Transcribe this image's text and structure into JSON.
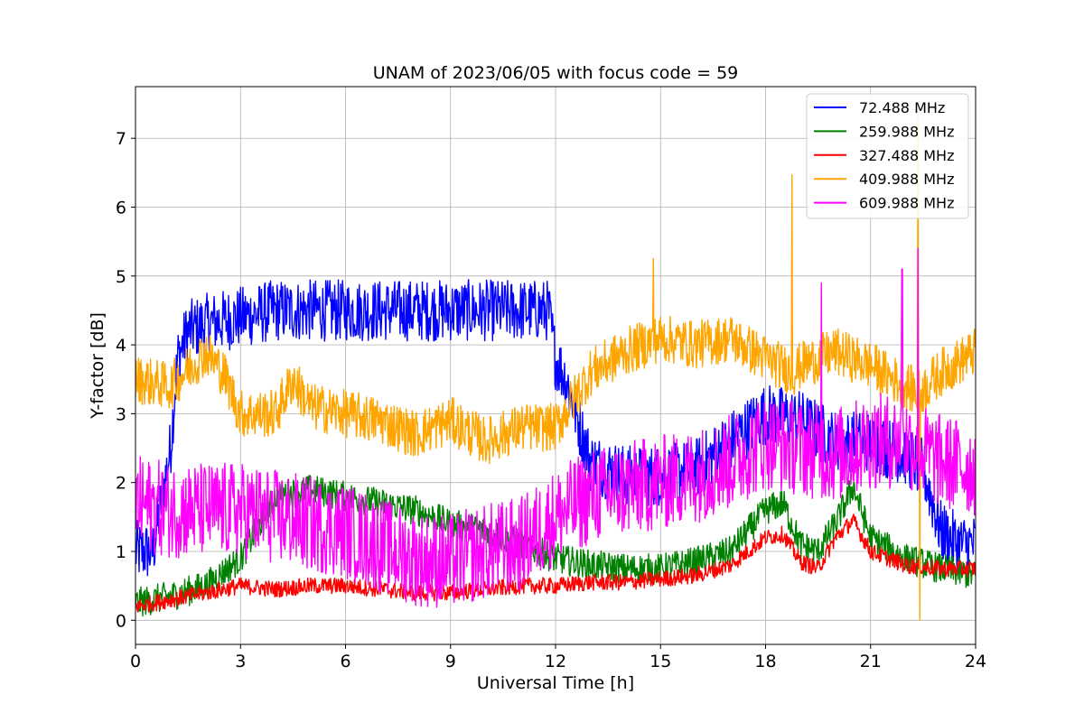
{
  "chart_data": {
    "type": "line",
    "title": "UNAM of 2023/06/05 with focus code = 59",
    "xlabel": "Universal Time [h]",
    "ylabel": "Y-factor [dB]",
    "xlim": [
      0,
      24
    ],
    "ylim": [
      -0.35,
      7.75
    ],
    "xticks": [
      0,
      3,
      6,
      9,
      12,
      15,
      18,
      21,
      24
    ],
    "xtick_labels": [
      "0",
      "3",
      "6",
      "9",
      "12",
      "15",
      "18",
      "21",
      "24"
    ],
    "yticks": [
      0,
      1,
      2,
      3,
      4,
      5,
      6,
      7
    ],
    "ytick_labels": [
      "0",
      "1",
      "2",
      "3",
      "4",
      "5",
      "6",
      "7"
    ],
    "grid": true,
    "legend_position": "top-right",
    "series": [
      {
        "name": " 72.488 MHz",
        "color": "#0000ff",
        "x": [
          0,
          0.5,
          1,
          1.2,
          1.5,
          2,
          3,
          4,
          5,
          6,
          7,
          8,
          9,
          10,
          11,
          11.8,
          12,
          12.3,
          12.7,
          13,
          14,
          15,
          16,
          17,
          18,
          19,
          20,
          21,
          22,
          22.5,
          23,
          23.5,
          24
        ],
        "y": [
          1.0,
          1.0,
          2.5,
          3.8,
          4.2,
          4.3,
          4.4,
          4.5,
          4.5,
          4.5,
          4.5,
          4.5,
          4.5,
          4.5,
          4.5,
          4.5,
          3.8,
          3.5,
          2.8,
          2.3,
          2.1,
          2.1,
          2.2,
          2.6,
          3.0,
          2.9,
          2.6,
          2.6,
          2.4,
          2.2,
          1.3,
          1.1,
          1.1
        ],
        "noise": 0.45
      },
      {
        "name": "259.988 MHz",
        "color": "#008000",
        "x": [
          0,
          1,
          2,
          3,
          4,
          5,
          6,
          7,
          8,
          9,
          10,
          11,
          12,
          13,
          14,
          15,
          16,
          17,
          18,
          18.5,
          19,
          19.5,
          20,
          20.5,
          21,
          22,
          23,
          24
        ],
        "y": [
          0.25,
          0.35,
          0.5,
          0.9,
          1.8,
          1.9,
          1.8,
          1.7,
          1.6,
          1.4,
          1.3,
          1.1,
          0.9,
          0.8,
          0.75,
          0.75,
          0.85,
          1.0,
          1.6,
          1.7,
          1.1,
          1.0,
          1.4,
          1.95,
          1.2,
          0.9,
          0.75,
          0.65
        ],
        "noise": 0.22
      },
      {
        "name": "327.488 MHz",
        "color": "#ff0000",
        "x": [
          0,
          1,
          2,
          3,
          4,
          5,
          6,
          7,
          8,
          9,
          10,
          11,
          12,
          13,
          14,
          15,
          16,
          17,
          18,
          18.5,
          19,
          19.5,
          20,
          20.5,
          21,
          22,
          23,
          24
        ],
        "y": [
          0.2,
          0.3,
          0.4,
          0.5,
          0.45,
          0.5,
          0.5,
          0.45,
          0.4,
          0.4,
          0.45,
          0.5,
          0.5,
          0.55,
          0.55,
          0.6,
          0.65,
          0.8,
          1.2,
          1.25,
          0.85,
          0.75,
          1.2,
          1.45,
          1.0,
          0.8,
          0.75,
          0.75
        ],
        "noise": 0.12
      },
      {
        "name": "409.988 MHz",
        "color": "#ffa500",
        "x": [
          0,
          1,
          2,
          2.5,
          3,
          4,
          4.5,
          5,
          6,
          7,
          8,
          9,
          10,
          11,
          12,
          12.5,
          13,
          14,
          15,
          16,
          17,
          18,
          18.8,
          19,
          20,
          21,
          22,
          22.4,
          23,
          24
        ],
        "y": [
          3.5,
          3.4,
          3.9,
          3.6,
          3.0,
          3.0,
          3.5,
          3.1,
          3.0,
          2.9,
          2.7,
          2.9,
          2.6,
          2.8,
          2.8,
          3.2,
          3.6,
          3.9,
          4.1,
          4.0,
          4.1,
          3.8,
          3.6,
          3.7,
          3.9,
          3.7,
          3.4,
          3.3,
          3.6,
          3.9
        ],
        "noise": 0.35,
        "spikes": [
          [
            18.75,
            6.47
          ],
          [
            14.8,
            5.25
          ],
          [
            22.35,
            7.3
          ],
          [
            22.4,
            0.0
          ]
        ]
      },
      {
        "name": "609.988 MHz",
        "color": "#ff00ff",
        "x": [
          0,
          1,
          2,
          3,
          4,
          5,
          6,
          7,
          8,
          9,
          10,
          11,
          12,
          13,
          14,
          15,
          16,
          17,
          18,
          19,
          20,
          21,
          22,
          23,
          24
        ],
        "y": [
          1.7,
          1.6,
          1.6,
          1.6,
          1.5,
          1.4,
          1.3,
          1.1,
          0.9,
          0.85,
          1.0,
          1.1,
          1.5,
          1.8,
          1.9,
          2.0,
          2.1,
          2.3,
          2.6,
          2.5,
          2.4,
          2.6,
          2.6,
          2.3,
          2.2
        ],
        "noise": 0.7,
        "spikes": [
          [
            22.35,
            5.4
          ],
          [
            21.9,
            5.1
          ],
          [
            19.6,
            4.9
          ]
        ]
      }
    ]
  }
}
